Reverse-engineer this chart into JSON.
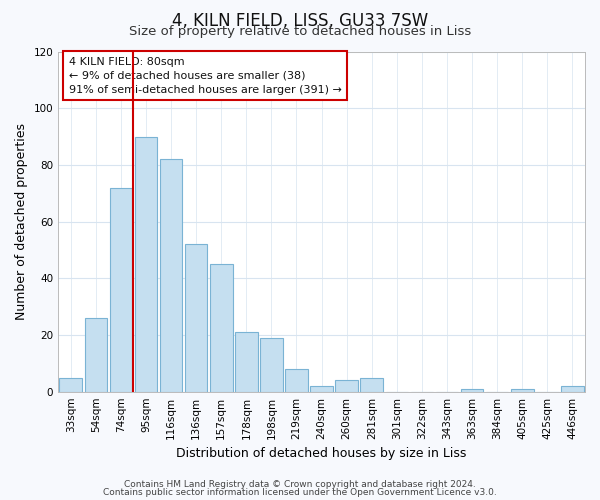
{
  "title": "4, KILN FIELD, LISS, GU33 7SW",
  "subtitle": "Size of property relative to detached houses in Liss",
  "xlabel": "Distribution of detached houses by size in Liss",
  "ylabel": "Number of detached properties",
  "bar_labels": [
    "33sqm",
    "54sqm",
    "74sqm",
    "95sqm",
    "116sqm",
    "136sqm",
    "157sqm",
    "178sqm",
    "198sqm",
    "219sqm",
    "240sqm",
    "260sqm",
    "281sqm",
    "301sqm",
    "322sqm",
    "343sqm",
    "363sqm",
    "384sqm",
    "405sqm",
    "425sqm",
    "446sqm"
  ],
  "bar_values": [
    5,
    26,
    72,
    90,
    82,
    52,
    45,
    21,
    19,
    8,
    2,
    4,
    5,
    0,
    0,
    0,
    1,
    0,
    1,
    0,
    2
  ],
  "bar_color": "#c5dff0",
  "bar_edge_color": "#7ab3d4",
  "ylim": [
    0,
    120
  ],
  "yticks": [
    0,
    20,
    40,
    60,
    80,
    100,
    120
  ],
  "vline_position": 2.5,
  "vline_color": "#cc0000",
  "annotation_title": "4 KILN FIELD: 80sqm",
  "annotation_line1": "← 9% of detached houses are smaller (38)",
  "annotation_line2": "91% of semi-detached houses are larger (391) →",
  "annotation_box_color": "#ffffff",
  "annotation_box_edge": "#cc0000",
  "footer1": "Contains HM Land Registry data © Crown copyright and database right 2024.",
  "footer2": "Contains public sector information licensed under the Open Government Licence v3.0.",
  "bg_color": "#f7f9fd",
  "plot_bg_color": "#ffffff",
  "title_fontsize": 12,
  "subtitle_fontsize": 9.5,
  "axis_label_fontsize": 9,
  "tick_fontsize": 7.5,
  "annotation_fontsize": 8,
  "footer_fontsize": 6.5,
  "grid_color": "#d8e4f0"
}
